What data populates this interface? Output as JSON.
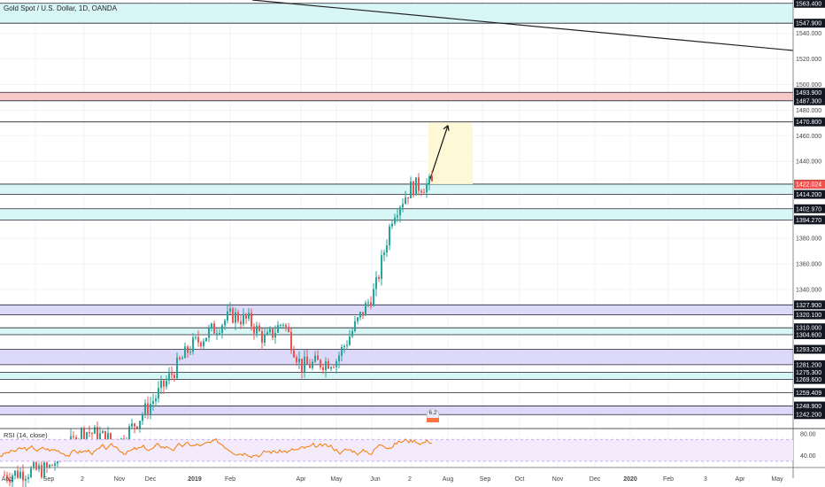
{
  "header": {
    "title": "Gold Spot / U.S. Dollar, 1D, OANDA"
  },
  "rsi": {
    "label": "RSI (14, close)",
    "ticks": [
      80,
      40
    ]
  },
  "marker": {
    "label": "6.2"
  },
  "colors": {
    "up": "#26a69a",
    "down": "#ef5350",
    "rsi_line": "#f57c00",
    "zone_cyan": "#d9f6f6",
    "zone_lavender": "#dcdaf8",
    "zone_red": "#f7caca",
    "price_label": "#131722",
    "current_label": "#ef5350",
    "projection": "#fff8d6"
  },
  "chart_data": {
    "type": "candlestick",
    "symbol": "Gold Spot / U.S. Dollar",
    "interval": "1D",
    "exchange": "OANDA",
    "current_price": 1422.024,
    "price_axis_ticks": [
      1563.4,
      1547.9,
      1540.0,
      1520.0,
      1500.0,
      1493.9,
      1487.3,
      1480.0,
      1470.8,
      1460.0,
      1440.0,
      1422.2,
      1422.024,
      1414.2,
      1402.97,
      1394.27,
      1380.0,
      1360.0,
      1340.0,
      1327.9,
      1320.1,
      1310.0,
      1304.6,
      1293.2,
      1281.2,
      1275.3,
      1269.6,
      1259.409,
      1248.9,
      1242.2
    ],
    "price_axis_labels": [
      "1563.400",
      "1547.900",
      "1540.000",
      "1520.000",
      "1500.000",
      "1493.900",
      "1487.300",
      "1480.000",
      "1470.800",
      "1460.000",
      "1440.000",
      "1422.200",
      "1422.024",
      "1414.200",
      "1402.970",
      "1394.270",
      "1380.000",
      "1360.000",
      "1340.000",
      "1327.900",
      "1320.100",
      "1310.000",
      "1304.600",
      "1293.200",
      "1281.200",
      "1275.300",
      "1269.600",
      "1259.409",
      "1248.900",
      "1242.200"
    ],
    "price_range": [
      1232,
      1566
    ],
    "time_axis_labels": [
      "Aug",
      "Sep",
      "2",
      "Nov",
      "Dec",
      "2019",
      "Feb",
      "Apr",
      "May",
      "Jun",
      "2",
      "Aug",
      "Sep",
      "Oct",
      "Nov",
      "Dec",
      "2020",
      "Feb",
      "3",
      "Apr",
      "May"
    ],
    "zones": [
      {
        "from": 1547.9,
        "to": 1563.4,
        "color": "cyan"
      },
      {
        "from": 1487.3,
        "to": 1493.9,
        "color": "red"
      },
      {
        "from": 1414.2,
        "to": 1422.2,
        "color": "cyan"
      },
      {
        "from": 1394.27,
        "to": 1402.97,
        "color": "cyan"
      },
      {
        "from": 1320.1,
        "to": 1327.9,
        "color": "lavender"
      },
      {
        "from": 1304.6,
        "to": 1310.0,
        "color": "cyan"
      },
      {
        "from": 1281.2,
        "to": 1293.2,
        "color": "lavender"
      },
      {
        "from": 1269.6,
        "to": 1275.3,
        "color": "cyan"
      },
      {
        "from": 1242.2,
        "to": 1248.9,
        "color": "lavender"
      }
    ],
    "horizontal_lines": [
      1470.8,
      1259.409
    ],
    "trendline": {
      "from": {
        "x": "Aug 2018",
        "y": 1566
      },
      "to": {
        "x": "May 2020",
        "y": 1527
      }
    },
    "projection_arrow": {
      "from": 1422.2,
      "to": 1468
    },
    "price_path": [
      [
        "Aug 2018",
        1195
      ],
      [
        "Sep 2018",
        1200
      ],
      [
        "Oct 2018",
        1230
      ],
      [
        "Nov 2018",
        1220
      ],
      [
        "Dec 2018",
        1255
      ],
      [
        "Jan 2019",
        1295
      ],
      [
        "Feb 2019",
        1320
      ],
      [
        "Feb 2019",
        1315
      ],
      [
        "Mar 2019",
        1300
      ],
      [
        "Mar 2019",
        1315
      ],
      [
        "Apr 2019",
        1280
      ],
      [
        "May 2019",
        1285
      ],
      [
        "Jun 2019",
        1340
      ],
      [
        "Jun 2019",
        1400
      ],
      [
        "Jul 2019",
        1420
      ],
      [
        "Jul 2019",
        1422
      ]
    ],
    "rsi_range": [
      20,
      90
    ],
    "rsi_levels": [
      70,
      30
    ]
  }
}
